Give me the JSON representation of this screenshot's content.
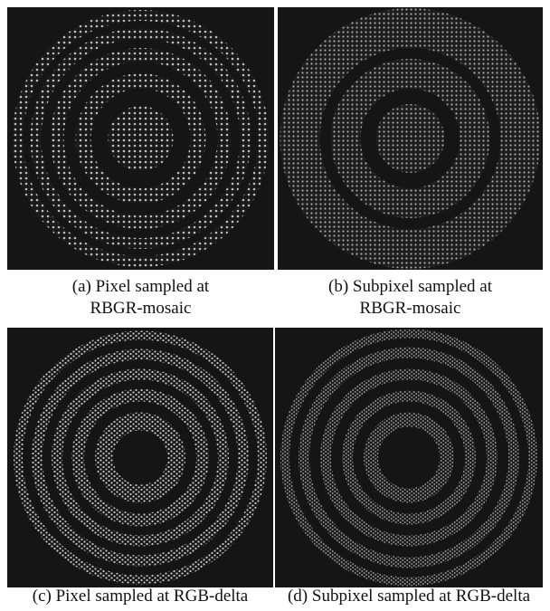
{
  "panels": [
    {
      "caption": [
        "(a) Pixel sampled at",
        "RBGR-mosaic"
      ]
    },
    {
      "caption": [
        "(b) Subpixel sampled at",
        "RBGR-mosaic"
      ]
    },
    {
      "caption": [
        "(c) Pixel sampled at RGB-delta"
      ]
    },
    {
      "caption": [
        "(d) Subpixel sampled at RGB-delta"
      ]
    }
  ]
}
